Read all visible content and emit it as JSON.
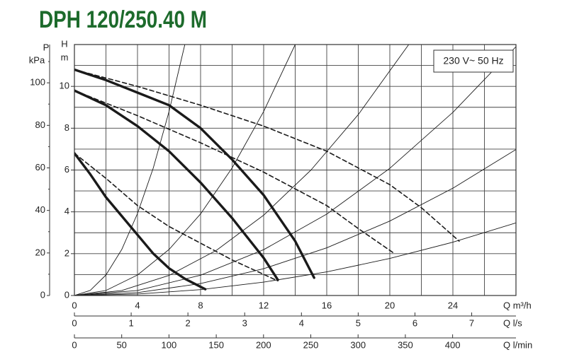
{
  "chart_data": {
    "type": "line",
    "title": "DPH 120/250.40 M",
    "title_color": "#1d6b2c",
    "annotation": "230 V~ 50 Hz",
    "x_label": "Q m³/h",
    "y_label_top": "H",
    "y_label": "m",
    "xlim": [
      0,
      28
    ],
    "ylim": [
      0,
      12
    ],
    "xticks": [
      0,
      4,
      8,
      12,
      16,
      20,
      24
    ],
    "yticks": [
      0,
      2,
      4,
      6,
      8,
      10
    ],
    "xgrid": [
      0,
      2,
      4,
      6,
      8,
      10,
      12,
      14,
      16,
      18,
      20,
      22,
      24,
      26,
      28
    ],
    "ygrid": [
      0,
      1,
      2,
      3,
      4,
      5,
      6,
      7,
      8,
      9,
      10,
      11,
      12
    ],
    "p_axis": {
      "label_top": "P",
      "label": "kPa",
      "lim": [
        0,
        118
      ],
      "ticks": [
        0,
        20,
        40,
        60,
        80,
        100
      ],
      "minor_ticks": [
        10,
        30,
        50,
        70,
        90,
        110
      ]
    },
    "x2_axis": {
      "label": "Q l/s",
      "lim": [
        0,
        7.78
      ],
      "ticks": [
        0,
        1,
        2,
        3,
        4,
        5,
        6,
        7
      ]
    },
    "x3_axis": {
      "label": "Q l/min",
      "lim": [
        0,
        467
      ],
      "ticks": [
        0,
        50,
        100,
        150,
        200,
        250,
        300,
        350,
        400
      ]
    },
    "series": [
      {
        "style": "solid",
        "color": "#1a1a1a",
        "x": [
          0,
          2,
          4,
          6,
          8,
          10,
          12,
          14,
          15.2
        ],
        "values": [
          10.8,
          10.3,
          9.7,
          9.1,
          8.0,
          6.5,
          4.8,
          2.6,
          0.85
        ]
      },
      {
        "style": "solid",
        "color": "#1a1a1a",
        "x": [
          0,
          2,
          4,
          6,
          8,
          10,
          12,
          12.9
        ],
        "values": [
          9.8,
          9.1,
          8.1,
          6.9,
          5.4,
          3.7,
          1.8,
          0.75
        ]
      },
      {
        "style": "solid",
        "color": "#1a1a1a",
        "x": [
          0,
          1,
          2,
          3,
          4,
          5,
          6,
          7,
          8.3
        ],
        "values": [
          6.8,
          5.8,
          4.7,
          3.8,
          2.9,
          2.0,
          1.3,
          0.8,
          0.3
        ]
      },
      {
        "style": "dashed",
        "color": "#1a1a1a",
        "x": [
          0,
          4,
          8,
          12,
          16,
          20,
          22,
          24.4
        ],
        "values": [
          10.8,
          10.0,
          9.1,
          8.1,
          6.9,
          5.3,
          4.2,
          2.6
        ]
      },
      {
        "style": "dashed",
        "color": "#1a1a1a",
        "x": [
          0,
          4,
          8,
          12,
          16,
          18,
          20.3
        ],
        "values": [
          9.8,
          8.6,
          7.3,
          5.9,
          4.3,
          3.2,
          2.0
        ]
      },
      {
        "style": "dashed",
        "color": "#1a1a1a",
        "x": [
          0,
          2,
          4,
          6,
          8,
          10,
          12.9
        ],
        "values": [
          6.8,
          5.6,
          4.3,
          3.3,
          2.5,
          1.7,
          0.7
        ]
      },
      {
        "style": "thin",
        "color": "#1a1a1a",
        "x": [
          0,
          1,
          2,
          3,
          4,
          5,
          6,
          7
        ],
        "values": [
          0,
          0.245,
          0.98,
          2.2,
          3.92,
          6.1,
          8.8,
          12.0
        ]
      },
      {
        "style": "thin",
        "color": "#1a1a1a",
        "x": [
          0,
          2,
          4,
          6,
          8,
          10,
          12,
          14
        ],
        "values": [
          0,
          0.24,
          0.98,
          2.2,
          3.9,
          6.1,
          8.8,
          12.0
        ]
      },
      {
        "style": "thin",
        "color": "#1a1a1a",
        "x": [
          0,
          3,
          6,
          9,
          12,
          15,
          18,
          21.2
        ],
        "values": [
          0,
          0.24,
          0.96,
          2.16,
          3.84,
          6.0,
          8.65,
          12.0
        ]
      },
      {
        "style": "thin",
        "color": "#1a1a1a",
        "x": [
          0,
          4,
          8,
          12,
          16,
          20,
          24,
          28
        ],
        "values": [
          0,
          0.24,
          0.97,
          2.19,
          3.89,
          6.08,
          8.76,
          11.9
        ]
      },
      {
        "style": "thin",
        "color": "#1a1a1a",
        "x": [
          0,
          4,
          8,
          12,
          16,
          20,
          24,
          28
        ],
        "values": [
          0,
          0.14,
          0.57,
          1.28,
          2.28,
          3.56,
          5.13,
          6.98
        ]
      },
      {
        "style": "thin",
        "color": "#1a1a1a",
        "x": [
          0,
          4,
          8,
          12,
          16,
          20,
          24,
          28
        ],
        "values": [
          0,
          0.07,
          0.28,
          0.64,
          1.13,
          1.77,
          2.55,
          3.47
        ]
      }
    ]
  }
}
